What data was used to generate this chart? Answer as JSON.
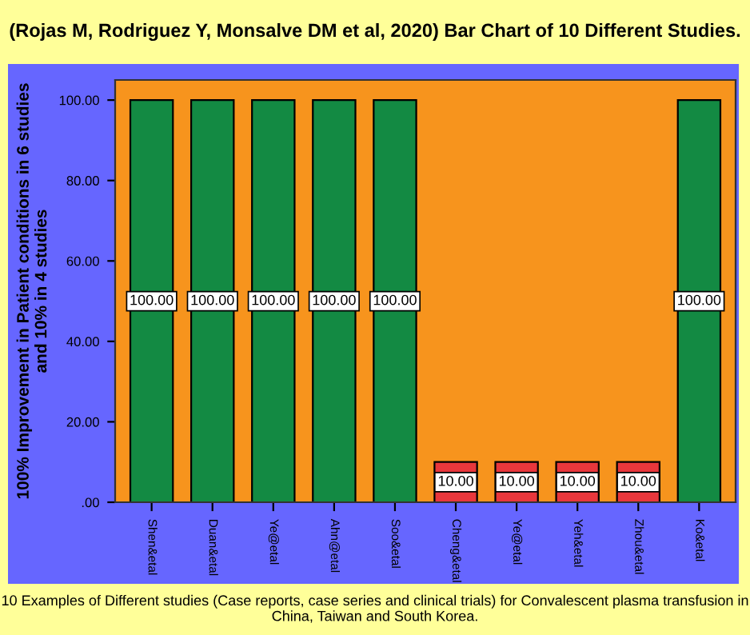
{
  "chart_data": {
    "type": "bar",
    "title": "(Rojas M, Rodriguez Y, Monsalve DM et al, 2020) Bar Chart of 10 Different Studies.",
    "ylabel": "100% Improvement in Patient conditions in 6 studies\nand 10% in 4 studies",
    "categories": [
      "Shen&etal",
      "Duan&etal",
      "Ye@etal",
      "Ahn@etal",
      "Soo&etal",
      "Cheng&etal",
      "Ye@etal",
      "Yeh&etal",
      "Zhou&etal",
      "Ko&etal"
    ],
    "values": [
      100,
      100,
      100,
      100,
      100,
      10,
      10,
      10,
      10,
      100
    ],
    "colors": [
      "#138a43",
      "#138a43",
      "#138a43",
      "#138a43",
      "#138a43",
      "#e8373c",
      "#e8373c",
      "#e8373c",
      "#e8373c",
      "#138a43"
    ],
    "value_labels": [
      "100.00",
      "100.00",
      "100.00",
      "100.00",
      "100.00",
      "10.00",
      "10.00",
      "10.00",
      "10.00",
      "100.00"
    ],
    "ylim": [
      0,
      105
    ],
    "yticks": [
      {
        "value": 0,
        "label": ".00"
      },
      {
        "value": 20,
        "label": "20.00"
      },
      {
        "value": 40,
        "label": "40.00"
      },
      {
        "value": 60,
        "label": "60.00"
      },
      {
        "value": 80,
        "label": "80.00"
      },
      {
        "value": 100,
        "label": "100.00"
      }
    ],
    "grid": false,
    "legend": false,
    "annotations": [
      "10 Examples of Different studies (Case reports, case series and clinical trials) for Convalescent plasma transfusion in China, Taiwan and South Korea."
    ]
  }
}
